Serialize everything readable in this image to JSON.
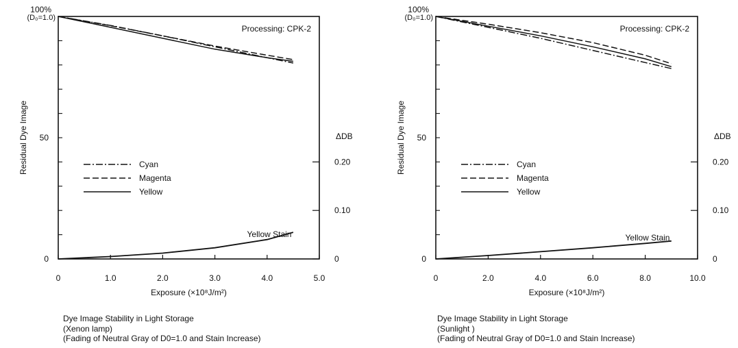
{
  "charts": [
    {
      "id": "left",
      "caption": {
        "line1": "Dye Image Stability in Light Storage",
        "line2": "(Xenon lamp)",
        "line3": "(Fading of Neutral Gray of D0=1.0 and Stain Increase)"
      }
    },
    {
      "id": "right",
      "caption": {
        "line1": "Dye Image Stability in Light Storage",
        "line2": "(Sunlight )",
        "line3": "(Fading of Neutral Gray of D0=1.0 and Stain Increase)"
      }
    }
  ],
  "chart_data": [
    {
      "type": "line",
      "annotation": "Processing: CPK-2",
      "xlabel": "Exposure (×10⁸J/m²)",
      "ylabel": "Residual Dye Image",
      "y2label": "ΔDB",
      "xlim": [
        0,
        5.0
      ],
      "ylim": [
        0,
        100
      ],
      "y2lim": [
        0,
        0.5
      ],
      "xticks": [
        "0",
        "1.0",
        "2.0",
        "3.0",
        "4.0",
        "5.0"
      ],
      "yticks": [
        "0",
        "50",
        "100%"
      ],
      "ytop_sublabel": "(D₀=1.0)",
      "y2ticks": [
        "0",
        "0.10",
        "0.20"
      ],
      "legend_position": "middle-left",
      "stain_label": "Yellow Stain",
      "series": [
        {
          "name": "Cyan",
          "style": "dashdot",
          "x": [
            0,
            1.0,
            2.0,
            3.0,
            4.0,
            4.5
          ],
          "y": [
            100,
            96.3,
            92.0,
            87.5,
            83.0,
            80.8
          ]
        },
        {
          "name": "Magenta",
          "style": "dashed",
          "x": [
            0,
            1.0,
            2.0,
            3.0,
            4.0,
            4.5
          ],
          "y": [
            100,
            96.2,
            92.0,
            87.8,
            84.0,
            82.2
          ]
        },
        {
          "name": "Yellow",
          "style": "solid",
          "x": [
            0,
            1.0,
            2.0,
            3.0,
            4.0,
            4.5
          ],
          "y": [
            100,
            95.5,
            91.0,
            86.5,
            83.0,
            81.5
          ]
        }
      ],
      "stain": {
        "name": "Yellow Stain",
        "x": [
          0,
          1.0,
          2.0,
          3.0,
          4.0,
          4.5
        ],
        "y": [
          0,
          0.005,
          0.012,
          0.023,
          0.04,
          0.055
        ]
      }
    },
    {
      "type": "line",
      "annotation": "Processing: CPK-2",
      "xlabel": "Exposure (×10⁸J/m²)",
      "ylabel": "Residual Dye Image",
      "y2label": "ΔDB",
      "xlim": [
        0,
        10.0
      ],
      "ylim": [
        0,
        100
      ],
      "y2lim": [
        0,
        0.5
      ],
      "xticks": [
        "0",
        "2.0",
        "4.0",
        "6.0",
        "8.0",
        "10.0"
      ],
      "yticks": [
        "0",
        "50",
        "100%"
      ],
      "ytop_sublabel": "(D₀=1.0)",
      "y2ticks": [
        "0",
        "0.10",
        "0.20"
      ],
      "legend_position": "middle-left",
      "stain_label": "Yellow Stain",
      "series": [
        {
          "name": "Cyan",
          "style": "dashdot",
          "x": [
            0,
            2.0,
            4.0,
            6.0,
            8.0,
            9.0
          ],
          "y": [
            100,
            95.5,
            91.0,
            86.0,
            81.0,
            78.5
          ]
        },
        {
          "name": "Magenta",
          "style": "dashed",
          "x": [
            0,
            2.0,
            4.0,
            6.0,
            8.0,
            9.0
          ],
          "y": [
            100,
            96.8,
            93.3,
            89.2,
            84.0,
            80.5
          ]
        },
        {
          "name": "Yellow",
          "style": "solid",
          "x": [
            0,
            2.0,
            4.0,
            6.0,
            8.0,
            9.0
          ],
          "y": [
            100,
            96.0,
            92.0,
            87.5,
            82.5,
            79.3
          ]
        }
      ],
      "stain": {
        "name": "Yellow Stain",
        "x": [
          0,
          2.0,
          4.0,
          6.0,
          8.0,
          9.0
        ],
        "y": [
          0,
          0.007,
          0.015,
          0.023,
          0.032,
          0.037
        ]
      }
    }
  ]
}
